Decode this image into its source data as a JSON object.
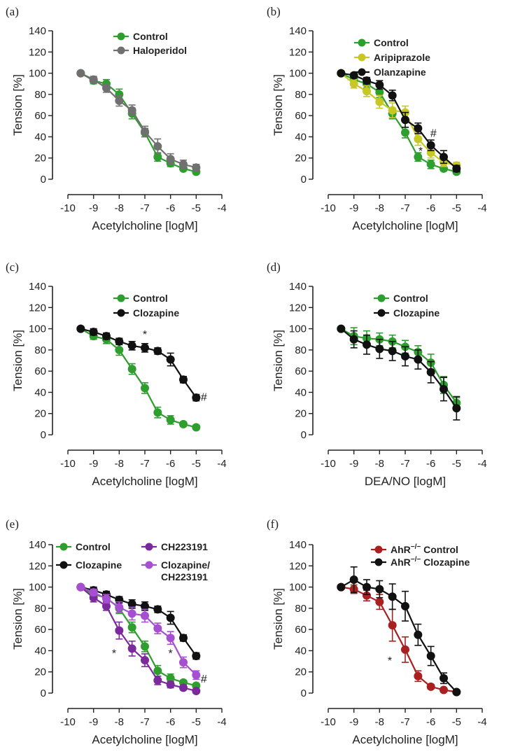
{
  "figure": {
    "panels": [
      "(a)",
      "(b)",
      "(c)",
      "(d)",
      "(e)",
      "(f)"
    ]
  },
  "colors": {
    "control": "#2e9e2e",
    "haloperidol": "#707070",
    "aripiprazole": "#c8c824",
    "olanzapine": "#111111",
    "clozapine": "#111111",
    "ch223191": "#7a2a9a",
    "clozapine_ch": "#a64fd0",
    "ahr_control": "#a82020",
    "ahr_clozapine": "#111111",
    "axis": "#222222"
  },
  "chart_data": [
    {
      "type": "line",
      "panel": "(a)",
      "xlabel": "Acetylcholine [logM]",
      "ylabel": "Tension [%]",
      "xlim": [
        -10,
        -4
      ],
      "ylim": [
        0,
        140
      ],
      "xticks": [
        -10,
        -9,
        -8,
        -7,
        -6,
        -5,
        -4
      ],
      "yticks": [
        0,
        20,
        40,
        60,
        80,
        100,
        120,
        140
      ],
      "x": [
        -9.5,
        -9,
        -8.5,
        -8,
        -7.5,
        -7,
        -6.5,
        -6,
        -5.5,
        -5
      ],
      "series": [
        {
          "name": "Control",
          "color": "control",
          "values": [
            100,
            93,
            90,
            80,
            62,
            44,
            21,
            15,
            10,
            7
          ],
          "err": [
            0,
            3,
            4,
            5,
            5,
            4,
            4,
            3,
            2,
            2
          ]
        },
        {
          "name": "Haloperidol",
          "color": "haloperidol",
          "values": [
            100,
            94,
            86,
            74,
            65,
            45,
            31,
            19,
            14,
            11
          ],
          "err": [
            0,
            3,
            4,
            5,
            5,
            5,
            7,
            5,
            4,
            3
          ]
        }
      ],
      "annotations": []
    },
    {
      "type": "line",
      "panel": "(b)",
      "xlabel": "Acetylcholine [logM]",
      "ylabel": "Tension [%]",
      "xlim": [
        -10,
        -4
      ],
      "ylim": [
        0,
        140
      ],
      "xticks": [
        -10,
        -9,
        -8,
        -7,
        -6,
        -5,
        -4
      ],
      "yticks": [
        0,
        20,
        40,
        60,
        80,
        100,
        120,
        140
      ],
      "x": [
        -9.5,
        -9,
        -8.5,
        -8,
        -7.5,
        -7,
        -6.5,
        -6,
        -5.5,
        -5
      ],
      "series": [
        {
          "name": "Control",
          "color": "control",
          "values": [
            100,
            94,
            90,
            82,
            62,
            44,
            21,
            14,
            10,
            7
          ],
          "err": [
            0,
            3,
            4,
            5,
            5,
            5,
            4,
            4,
            2,
            2
          ]
        },
        {
          "name": "Aripiprazole",
          "color": "aripiprazole",
          "values": [
            100,
            90,
            83,
            73,
            65,
            63,
            38,
            25,
            16,
            13
          ],
          "err": [
            0,
            4,
            5,
            6,
            7,
            6,
            6,
            5,
            4,
            3
          ]
        },
        {
          "name": "Olanzapine",
          "color": "olanzapine",
          "values": [
            100,
            98,
            93,
            89,
            79,
            56,
            48,
            32,
            21,
            10
          ],
          "err": [
            0,
            2,
            3,
            4,
            5,
            7,
            5,
            5,
            6,
            3
          ]
        }
      ],
      "annotations": [
        {
          "text": "*",
          "x": -6.4,
          "y": 27
        },
        {
          "text": "#",
          "x": -5.9,
          "y": 44
        }
      ]
    },
    {
      "type": "line",
      "panel": "(c)",
      "xlabel": "Acetylcholine [logM]",
      "ylabel": "Tension [%]",
      "xlim": [
        -10,
        -4
      ],
      "ylim": [
        0,
        140
      ],
      "xticks": [
        -10,
        -9,
        -8,
        -7,
        -6,
        -5,
        -4
      ],
      "yticks": [
        0,
        20,
        40,
        60,
        80,
        100,
        120,
        140
      ],
      "x": [
        -9.5,
        -9,
        -8.5,
        -8,
        -7.5,
        -7,
        -6.5,
        -6,
        -5.5,
        -5
      ],
      "series": [
        {
          "name": "Control",
          "color": "control",
          "values": [
            100,
            93,
            90,
            80,
            62,
            44,
            21,
            14,
            10,
            7
          ],
          "err": [
            0,
            3,
            4,
            5,
            5,
            5,
            5,
            4,
            2,
            2
          ]
        },
        {
          "name": "Clozapine",
          "color": "clozapine",
          "values": [
            100,
            97,
            93,
            88,
            84,
            82,
            79,
            71,
            52,
            35
          ],
          "err": [
            0,
            3,
            3,
            3,
            4,
            4,
            3,
            6,
            3,
            3
          ]
        }
      ],
      "annotations": [
        {
          "text": "*",
          "x": -7.0,
          "y": 95
        },
        {
          "text": "#",
          "x": -4.7,
          "y": 36
        }
      ]
    },
    {
      "type": "line",
      "panel": "(d)",
      "xlabel": "DEA/NO [logM]",
      "ylabel": "Tension [%]",
      "xlim": [
        -10,
        -4
      ],
      "ylim": [
        0,
        140
      ],
      "xticks": [
        -10,
        -9,
        -8,
        -7,
        -6,
        -5,
        -4
      ],
      "yticks": [
        0,
        20,
        40,
        60,
        80,
        100,
        120,
        140
      ],
      "x": [
        -9.5,
        -9,
        -8.5,
        -8,
        -7.5,
        -7,
        -6.5,
        -6,
        -5.5,
        -5
      ],
      "series": [
        {
          "name": "Control",
          "color": "control",
          "values": [
            100,
            93,
            91,
            90,
            88,
            83,
            78,
            68,
            47,
            30
          ],
          "err": [
            0,
            8,
            7,
            6,
            6,
            6,
            6,
            8,
            8,
            5
          ]
        },
        {
          "name": "Clozapine",
          "color": "clozapine",
          "values": [
            100,
            90,
            85,
            81,
            79,
            74,
            71,
            59,
            43,
            25
          ],
          "err": [
            0,
            8,
            9,
            9,
            9,
            9,
            9,
            10,
            11,
            11
          ]
        }
      ],
      "annotations": []
    },
    {
      "type": "line",
      "panel": "(e)",
      "xlabel": "Acetylcholine [logM]",
      "ylabel": "Tension [%]",
      "xlim": [
        -10,
        -4
      ],
      "ylim": [
        0,
        140
      ],
      "xticks": [
        -10,
        -9,
        -8,
        -7,
        -6,
        -5,
        -4
      ],
      "yticks": [
        0,
        20,
        40,
        60,
        80,
        100,
        120,
        140
      ],
      "x": [
        -9.5,
        -9,
        -8.5,
        -8,
        -7.5,
        -7,
        -6.5,
        -6,
        -5.5,
        -5
      ],
      "series": [
        {
          "name": "Control",
          "color": "control",
          "values": [
            100,
            93,
            90,
            80,
            62,
            44,
            21,
            14,
            10,
            7
          ],
          "err": [
            0,
            3,
            4,
            5,
            5,
            5,
            5,
            4,
            2,
            2
          ]
        },
        {
          "name": "Clozapine",
          "color": "clozapine",
          "values": [
            100,
            97,
            93,
            88,
            84,
            82,
            79,
            71,
            52,
            35
          ],
          "err": [
            0,
            3,
            3,
            3,
            4,
            4,
            3,
            6,
            3,
            3
          ]
        },
        {
          "name": "CH223191",
          "color": "ch223191",
          "values": [
            100,
            90,
            82,
            59,
            42,
            31,
            12,
            8,
            5,
            2
          ],
          "err": [
            0,
            4,
            4,
            8,
            7,
            6,
            4,
            3,
            2,
            1
          ]
        },
        {
          "name": "Clozapine/ CH223191",
          "color": "clozapine_ch",
          "values": [
            100,
            95,
            89,
            81,
            75,
            73,
            61,
            52,
            29,
            17
          ],
          "err": [
            0,
            3,
            4,
            5,
            6,
            6,
            5,
            6,
            5,
            4
          ]
        }
      ],
      "annotations": [
        {
          "text": "*",
          "x": -8.2,
          "y": 38
        },
        {
          "text": "*",
          "x": -6.0,
          "y": 38
        },
        {
          "text": "#",
          "x": -4.7,
          "y": 14
        }
      ]
    },
    {
      "type": "line",
      "panel": "(f)",
      "xlabel": "Acetylcholine [logM]",
      "ylabel": "Tension [%]",
      "xlim": [
        -10,
        -4
      ],
      "ylim": [
        0,
        140
      ],
      "xticks": [
        -10,
        -9,
        -8,
        -7,
        -6,
        -5,
        -4
      ],
      "yticks": [
        0,
        20,
        40,
        60,
        80,
        100,
        120,
        140
      ],
      "x": [
        -9.5,
        -9,
        -8.5,
        -8,
        -7.5,
        -7,
        -6.5,
        -6,
        -5.5,
        -5
      ],
      "series": [
        {
          "name": "AhR",
          "sup": "−/−",
          "suffix": " Control",
          "color": "ahr_control",
          "values": [
            100,
            98,
            92,
            86,
            64,
            41,
            16,
            6,
            3,
            1
          ],
          "err": [
            0,
            4,
            5,
            7,
            15,
            12,
            5,
            2,
            1,
            1
          ]
        },
        {
          "name": "AhR",
          "sup": "−/−",
          "suffix": " Clozapine",
          "color": "ahr_clozapine",
          "values": [
            100,
            107,
            100,
            98,
            91,
            82,
            55,
            35,
            14,
            1
          ],
          "err": [
            0,
            12,
            7,
            8,
            12,
            14,
            10,
            9,
            5,
            1
          ]
        }
      ],
      "annotations": [
        {
          "text": "*",
          "x": -7.6,
          "y": 31
        }
      ]
    }
  ]
}
